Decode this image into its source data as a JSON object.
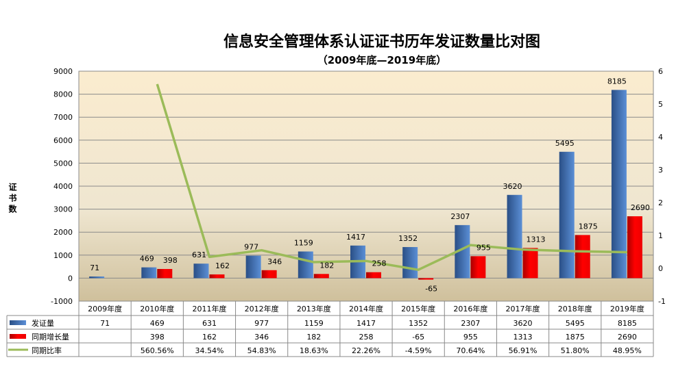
{
  "chart_data": {
    "type": "bar",
    "title": "信息安全管理体系认证证书历年发证数量比对图",
    "subtitle": "（2009年底—2019年底）",
    "ylabel": "证书数",
    "ylim": [
      -1000,
      9000
    ],
    "yticks": [
      -1000,
      0,
      1000,
      2000,
      3000,
      4000,
      5000,
      6000,
      7000,
      8000,
      9000
    ],
    "y2lim": [
      -1,
      6
    ],
    "y2ticks": [
      -1,
      0,
      1,
      2,
      3,
      4,
      5,
      6
    ],
    "grid": true,
    "legend": "data-table",
    "categories": [
      "2009年度",
      "2010年度",
      "2011年度",
      "2012年度",
      "2013年度",
      "2014年度",
      "2015年度",
      "2016年度",
      "2017年度",
      "2018年度",
      "2019年度"
    ],
    "series": [
      {
        "name": "发证量",
        "type": "bar",
        "axis": "left",
        "color": "#3a66a8",
        "values": [
          71,
          469,
          631,
          977,
          1159,
          1417,
          1352,
          2307,
          3620,
          5495,
          8185
        ],
        "table_text": [
          "71",
          "469",
          "631",
          "977",
          "1159",
          "1417",
          "1352",
          "2307",
          "3620",
          "5495",
          "8185"
        ]
      },
      {
        "name": "同期增长量",
        "type": "bar",
        "axis": "left",
        "color": "#e00000",
        "values": [
          null,
          398,
          162,
          346,
          182,
          258,
          -65,
          955,
          1313,
          1875,
          2690
        ],
        "table_text": [
          "",
          "398",
          "162",
          "346",
          "182",
          "258",
          "-65",
          "955",
          "1313",
          "1875",
          "2690"
        ]
      },
      {
        "name": "同期比率",
        "type": "line",
        "axis": "right",
        "color": "#9bbb59",
        "values": [
          null,
          5.6056,
          0.3454,
          0.5483,
          0.1863,
          0.2226,
          -0.0459,
          0.7064,
          0.5691,
          0.518,
          0.4895
        ],
        "table_text": [
          "",
          "560.56%",
          "34.54%",
          "54.83%",
          "18.63%",
          "22.26%",
          "-4.59%",
          "70.64%",
          "56.91%",
          "51.80%",
          "48.95%"
        ]
      }
    ]
  }
}
